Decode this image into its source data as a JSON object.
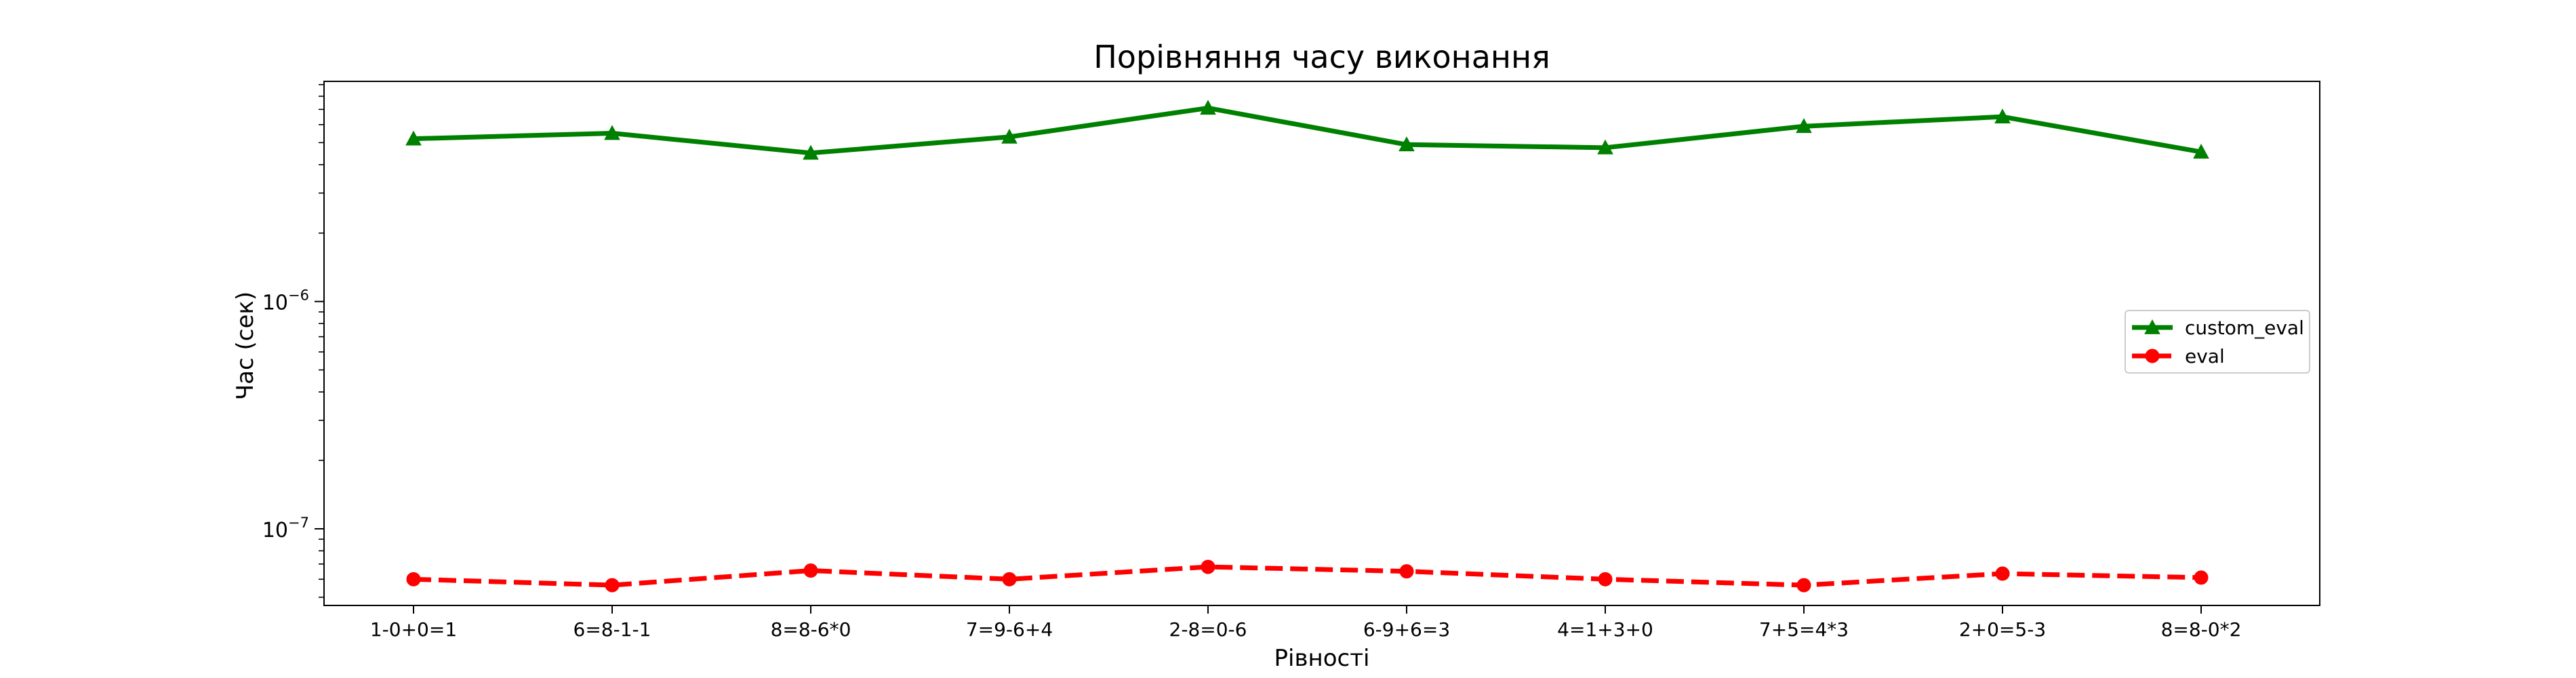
{
  "chart_data": {
    "type": "line",
    "title": "Порівняння часу виконання",
    "xlabel": "Рівності",
    "ylabel": "Час (сек)",
    "yscale": "log",
    "ylim": [
      4.6e-08,
      9.3e-06
    ],
    "grid": false,
    "legend_position": "center-right",
    "categories": [
      "1-0+0=1",
      "6=8-1-1",
      "8=8-6*0",
      "7=9-6+4",
      "2-8=0-6",
      "6-9+6=3",
      "4=1+3+0",
      "7+5=4*3",
      "2+0=5-3",
      "8=8-0*2"
    ],
    "y_ticks": [
      {
        "value": 1e-07,
        "base": "10",
        "exp": "−7"
      },
      {
        "value": 1e-06,
        "base": "10",
        "exp": "−6"
      }
    ],
    "series": [
      {
        "name": "custom_eval",
        "color": "#008000",
        "marker": "triangle",
        "linestyle": "solid",
        "values": [
          5.2e-06,
          5.5e-06,
          4.5e-06,
          5.3e-06,
          7.1e-06,
          4.9e-06,
          4.75e-06,
          5.9e-06,
          6.5e-06,
          4.55e-06
        ]
      },
      {
        "name": "eval",
        "color": "#ff0000",
        "marker": "circle",
        "linestyle": "dashed",
        "values": [
          6e-08,
          5.65e-08,
          6.55e-08,
          6e-08,
          6.8e-08,
          6.5e-08,
          6e-08,
          5.65e-08,
          6.35e-08,
          6.1e-08
        ]
      }
    ]
  }
}
